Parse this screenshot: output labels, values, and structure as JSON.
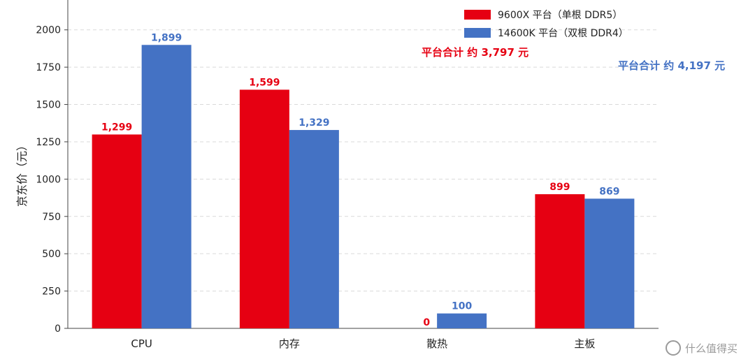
{
  "chart_data": {
    "type": "bar",
    "categories": [
      "CPU",
      "内存",
      "散热",
      "主板"
    ],
    "series": [
      {
        "name": "9600X 平台（单根 DDR5）",
        "values": [
          1299,
          1599,
          0,
          899
        ],
        "labels": [
          "1,299",
          "1,599",
          "0",
          "899"
        ],
        "color": "#e60012"
      },
      {
        "name": "14600K 平台（双根 DDR4）",
        "values": [
          1899,
          1329,
          100,
          869
        ],
        "labels": [
          "1,899",
          "1,329",
          "100",
          "869"
        ],
        "color": "#4472c4"
      }
    ],
    "ylabel": "京东价（元）",
    "ylim": [
      0,
      2200
    ],
    "yticks": [
      0,
      250,
      500,
      750,
      1000,
      1250,
      1500,
      1750,
      2000
    ],
    "grid": "horizontal-dashed",
    "legend_position": "top-right",
    "annotations": [
      {
        "text": "平台合计 约 3,797 元",
        "color": "#e60012"
      },
      {
        "text": "平台合计 约 4,197 元",
        "color": "#4472c4"
      }
    ]
  },
  "watermark": {
    "text": "什么值得买"
  }
}
